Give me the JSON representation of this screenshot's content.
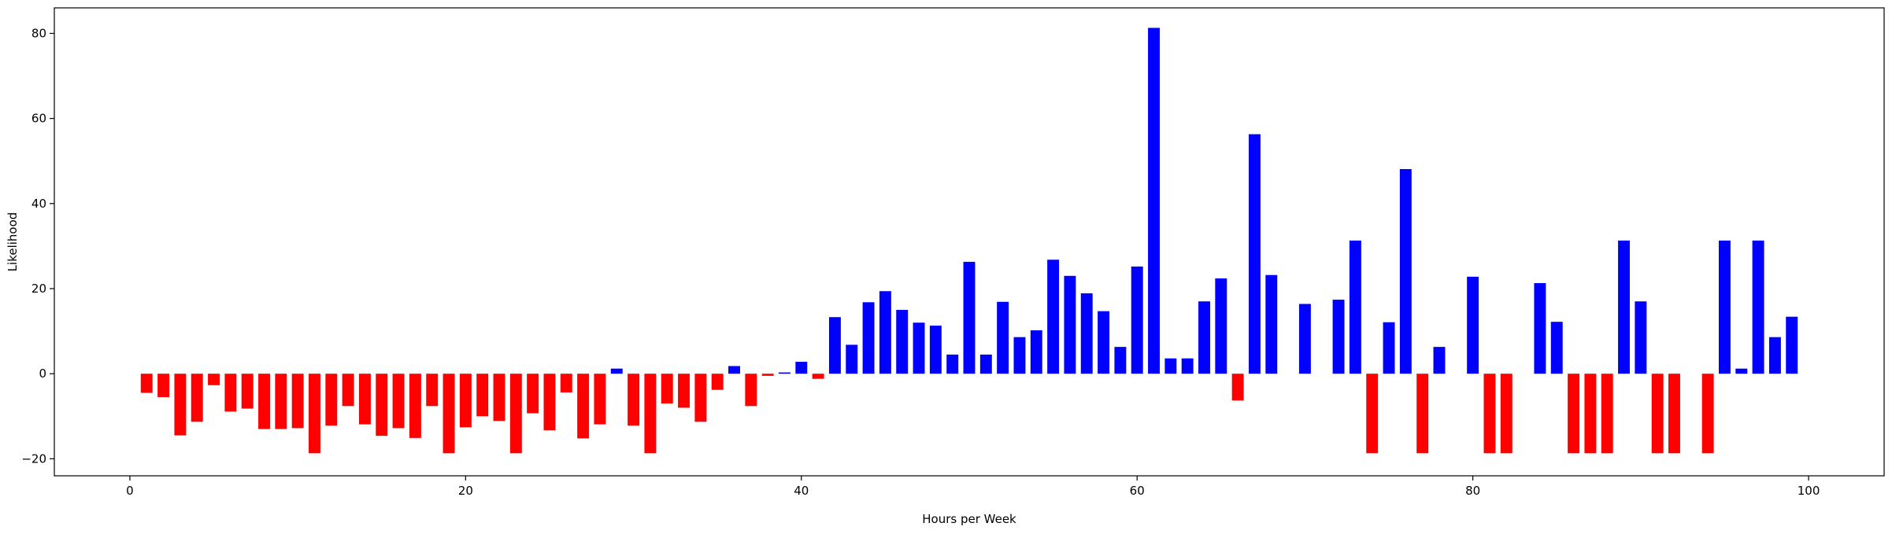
{
  "chart_data": {
    "type": "bar",
    "title": "",
    "xlabel": "Hours per Week",
    "ylabel": "Likelihood",
    "xlim": [
      -4.5,
      104.5
    ],
    "ylim": [
      -24,
      86
    ],
    "xticks": [
      0,
      20,
      40,
      60,
      80,
      100
    ],
    "yticks": [
      -20,
      0,
      20,
      40,
      60,
      80
    ],
    "xtick_labels": [
      "0",
      "20",
      "40",
      "60",
      "80",
      "100"
    ],
    "ytick_labels": [
      "−20",
      "0",
      "20",
      "40",
      "60",
      "80"
    ],
    "bar_width": 0.7,
    "grid": false,
    "colors": {
      "positive": "#0000ff",
      "negative": "#ff0000"
    },
    "x": [
      1,
      2,
      3,
      4,
      5,
      6,
      7,
      8,
      9,
      10,
      11,
      12,
      13,
      14,
      15,
      16,
      17,
      18,
      19,
      20,
      21,
      22,
      23,
      24,
      25,
      26,
      27,
      28,
      29,
      30,
      31,
      32,
      33,
      34,
      35,
      36,
      37,
      38,
      39,
      40,
      41,
      42,
      43,
      44,
      45,
      46,
      47,
      48,
      49,
      50,
      51,
      52,
      53,
      54,
      55,
      56,
      57,
      58,
      59,
      60,
      61,
      62,
      63,
      64,
      65,
      66,
      67,
      68,
      70,
      72,
      73,
      74,
      75,
      76,
      77,
      78,
      80,
      81,
      82,
      84,
      85,
      86,
      87,
      88,
      89,
      90,
      91,
      92,
      94,
      95,
      96,
      97,
      98,
      99
    ],
    "values": [
      -4.5,
      -5.5,
      -14.5,
      -11.3,
      -2.7,
      -8.9,
      -8.2,
      -13,
      -13,
      -12.8,
      -18.7,
      -12.2,
      -7.6,
      -11.9,
      -14.6,
      -12.8,
      -15.1,
      -7.6,
      -18.7,
      -12.6,
      -10,
      -11.1,
      -18.7,
      -9.3,
      -13.3,
      -4.4,
      -15.2,
      -11.9,
      1.2,
      -12.2,
      -18.7,
      -7,
      -8,
      -11.3,
      -3.8,
      1.8,
      -7.6,
      -0.5,
      0.3,
      2.8,
      -1.2,
      13.3,
      6.8,
      16.8,
      19.4,
      15,
      12,
      11.3,
      4.5,
      26.3,
      4.5,
      16.9,
      8.6,
      10.2,
      26.8,
      23,
      18.9,
      14.7,
      6.3,
      25.2,
      81.3,
      3.6,
      3.6,
      17,
      22.4,
      -6.3,
      56.3,
      23.2,
      16.4,
      17.4,
      31.3,
      -18.7,
      12.1,
      48.1,
      -18.7,
      6.3,
      22.8,
      -18.7,
      -18.7,
      21.3,
      12.2,
      -18.7,
      -18.7,
      -18.7,
      31.3,
      17,
      -18.7,
      -18.7,
      -18.7,
      31.3,
      1.2,
      31.3,
      8.6,
      13.4
    ]
  }
}
